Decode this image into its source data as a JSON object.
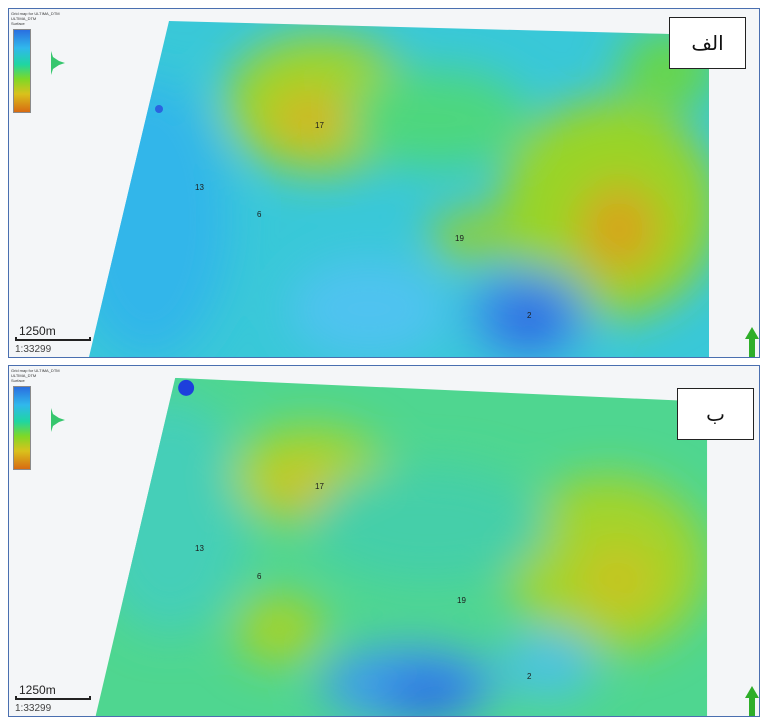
{
  "panels": [
    {
      "label": "الف",
      "legend_title_lines": [
        "Grid map for ULTIMA_DTM",
        "ULTIMA_DTM",
        "Surface"
      ],
      "wells": [
        "17",
        "13",
        "6",
        "19",
        "2"
      ],
      "scale": {
        "distance": "1250m",
        "ratio": "1:33299"
      }
    },
    {
      "label": "ب",
      "legend_title_lines": [
        "Grid map for ULTIMA_DTM",
        "ULTIMA_DTM",
        "Surface"
      ],
      "wells": [
        "17",
        "13",
        "6",
        "19",
        "2"
      ],
      "scale": {
        "distance": "1250m",
        "ratio": "1:33299"
      }
    }
  ],
  "colors": {
    "low": "#d86b12",
    "mid": "#7fd826",
    "high": "#2a6fe0",
    "frame": "#4a6fb0"
  }
}
